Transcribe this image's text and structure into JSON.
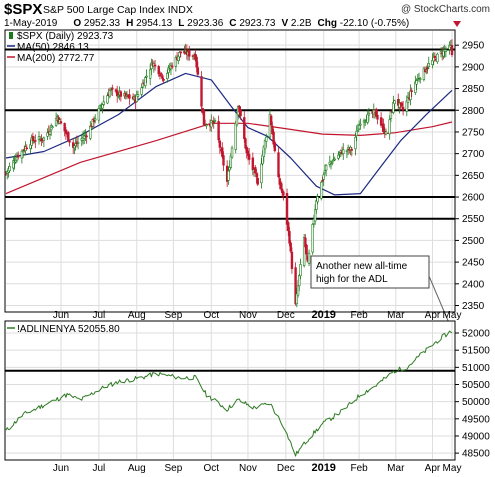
{
  "header": {
    "symbol": "$SPX",
    "name": "S&P 500 Large Cap Index",
    "exchange": "INDX",
    "watermark": "@ StockCharts.com",
    "date": "1-May-2019",
    "open_label": "O",
    "open": "2952.33",
    "high_label": "H",
    "high": "2954.13",
    "low_label": "L",
    "low": "2923.36",
    "close_label": "C",
    "close": "2923.73",
    "volume_label": "V",
    "volume": "2.2B",
    "change_label": "Chg",
    "change": "-22.10 (-0.75%)"
  },
  "colors": {
    "up": "#1a7a1a",
    "down": "#c0162e",
    "ma50": "#1c2a80",
    "ma200": "#c0162e",
    "adl": "#2d7a22",
    "frame": "#000000",
    "grid": "#dddddd"
  },
  "icons": {
    "change_marker": "triangle-down-icon"
  },
  "chart_data": [
    {
      "type": "candlestick",
      "legend": [
        {
          "label": "$SPX (Daily) 2923.73",
          "marker": "candle"
        },
        {
          "label": "MA(50) 2846.13",
          "color": "#1c2a80"
        },
        {
          "label": "MA(200) 2772.77",
          "color": "#c0162e"
        }
      ],
      "ylim": [
        2335,
        2985
      ],
      "yticks": [
        2350,
        2400,
        2450,
        2500,
        2550,
        2600,
        2650,
        2700,
        2750,
        2800,
        2850,
        2900,
        2950
      ],
      "horizontal_lines": [
        2940,
        2800,
        2600,
        2550
      ],
      "x_start": "2018-05-01",
      "x_end": "2019-05-01",
      "month_labels": [
        {
          "label": "Jun",
          "date": "2018-06-15"
        },
        {
          "label": "Jul",
          "date": "2018-07-16"
        },
        {
          "label": "Aug",
          "date": "2018-08-16"
        },
        {
          "label": "Sep",
          "date": "2018-09-15"
        },
        {
          "label": "Oct",
          "date": "2018-10-16"
        },
        {
          "label": "Nov",
          "date": "2018-11-15"
        },
        {
          "label": "Dec",
          "date": "2018-12-16"
        },
        {
          "label": "2019",
          "date": "2019-01-16",
          "bold": true
        },
        {
          "label": "Feb",
          "date": "2019-02-14"
        },
        {
          "label": "Mar",
          "date": "2019-03-16"
        },
        {
          "label": "Apr",
          "date": "2019-04-15"
        },
        {
          "label": "May",
          "date": "2019-05-01"
        }
      ],
      "close_series": [
        [
          "2018-05-01",
          2655
        ],
        [
          "2018-05-09",
          2690
        ],
        [
          "2018-05-22",
          2730
        ],
        [
          "2018-06-01",
          2735
        ],
        [
          "2018-06-12",
          2785
        ],
        [
          "2018-06-25",
          2715
        ],
        [
          "2018-07-06",
          2745
        ],
        [
          "2018-07-17",
          2805
        ],
        [
          "2018-07-25",
          2845
        ],
        [
          "2018-08-03",
          2835
        ],
        [
          "2018-08-15",
          2825
        ],
        [
          "2018-08-29",
          2910
        ],
        [
          "2018-09-07",
          2875
        ],
        [
          "2018-09-21",
          2935
        ],
        [
          "2018-10-03",
          2925
        ],
        [
          "2018-10-10",
          2770
        ],
        [
          "2018-10-19",
          2770
        ],
        [
          "2018-10-29",
          2635
        ],
        [
          "2018-11-07",
          2815
        ],
        [
          "2018-11-14",
          2700
        ],
        [
          "2018-11-23",
          2635
        ],
        [
          "2018-12-03",
          2790
        ],
        [
          "2018-12-10",
          2640
        ],
        [
          "2018-12-14",
          2600
        ],
        [
          "2018-12-19",
          2500
        ],
        [
          "2018-12-24",
          2350
        ],
        [
          "2018-12-31",
          2505
        ],
        [
          "2019-01-03",
          2445
        ],
        [
          "2019-01-10",
          2595
        ],
        [
          "2019-01-18",
          2670
        ],
        [
          "2019-01-31",
          2705
        ],
        [
          "2019-02-08",
          2710
        ],
        [
          "2019-02-15",
          2775
        ],
        [
          "2019-02-27",
          2795
        ],
        [
          "2019-03-08",
          2745
        ],
        [
          "2019-03-15",
          2825
        ],
        [
          "2019-03-22",
          2800
        ],
        [
          "2019-04-01",
          2865
        ],
        [
          "2019-04-12",
          2905
        ],
        [
          "2019-04-23",
          2935
        ],
        [
          "2019-04-30",
          2945
        ],
        [
          "2019-05-01",
          2924
        ]
      ],
      "ma50_series": [
        [
          "2018-05-01",
          2690
        ],
        [
          "2018-06-01",
          2705
        ],
        [
          "2018-07-01",
          2742
        ],
        [
          "2018-08-01",
          2790
        ],
        [
          "2018-09-01",
          2855
        ],
        [
          "2018-09-25",
          2885
        ],
        [
          "2018-10-16",
          2870
        ],
        [
          "2018-11-01",
          2810
        ],
        [
          "2018-11-15",
          2760
        ],
        [
          "2018-12-01",
          2740
        ],
        [
          "2018-12-20",
          2690
        ],
        [
          "2019-01-10",
          2625
        ],
        [
          "2019-01-25",
          2605
        ],
        [
          "2019-02-15",
          2608
        ],
        [
          "2019-03-01",
          2660
        ],
        [
          "2019-03-20",
          2730
        ],
        [
          "2019-04-10",
          2790
        ],
        [
          "2019-05-01",
          2846
        ]
      ],
      "ma200_series": [
        [
          "2018-05-01",
          2608
        ],
        [
          "2018-07-01",
          2680
        ],
        [
          "2018-09-01",
          2730
        ],
        [
          "2018-10-16",
          2770
        ],
        [
          "2018-11-15",
          2770
        ],
        [
          "2018-12-15",
          2758
        ],
        [
          "2019-01-15",
          2745
        ],
        [
          "2019-02-15",
          2742
        ],
        [
          "2019-03-15",
          2748
        ],
        [
          "2019-04-15",
          2762
        ],
        [
          "2019-05-01",
          2773
        ]
      ],
      "annotation": {
        "lines": [
          "Another new all-time",
          "high for the ADL"
        ]
      }
    },
    {
      "type": "line",
      "legend": [
        {
          "label": "!ADLINENYA 52055.80",
          "color": "#2d7a22"
        }
      ],
      "ylim": [
        48300,
        52350
      ],
      "yticks": [
        48500,
        49000,
        49500,
        50000,
        50500,
        51000,
        51500,
        52000
      ],
      "horizontal_lines": [
        50900
      ],
      "series": [
        [
          "2018-05-01",
          49150
        ],
        [
          "2018-05-15",
          49620
        ],
        [
          "2018-06-01",
          49900
        ],
        [
          "2018-06-20",
          50200
        ],
        [
          "2018-07-01",
          50050
        ],
        [
          "2018-07-20",
          50420
        ],
        [
          "2018-08-01",
          50580
        ],
        [
          "2018-08-20",
          50700
        ],
        [
          "2018-09-01",
          50820
        ],
        [
          "2018-09-20",
          50700
        ],
        [
          "2018-10-03",
          50700
        ],
        [
          "2018-10-12",
          50200
        ],
        [
          "2018-10-29",
          49780
        ],
        [
          "2018-11-07",
          50050
        ],
        [
          "2018-11-20",
          49820
        ],
        [
          "2018-12-03",
          49950
        ],
        [
          "2018-12-14",
          49300
        ],
        [
          "2018-12-24",
          48450
        ],
        [
          "2019-01-03",
          48900
        ],
        [
          "2019-01-15",
          49350
        ],
        [
          "2019-02-01",
          49750
        ],
        [
          "2019-02-15",
          50200
        ],
        [
          "2019-03-01",
          50500
        ],
        [
          "2019-03-15",
          50900
        ],
        [
          "2019-03-25",
          51000
        ],
        [
          "2019-04-05",
          51350
        ],
        [
          "2019-04-20",
          51800
        ],
        [
          "2019-04-30",
          52050
        ],
        [
          "2019-05-01",
          52055
        ]
      ]
    }
  ]
}
